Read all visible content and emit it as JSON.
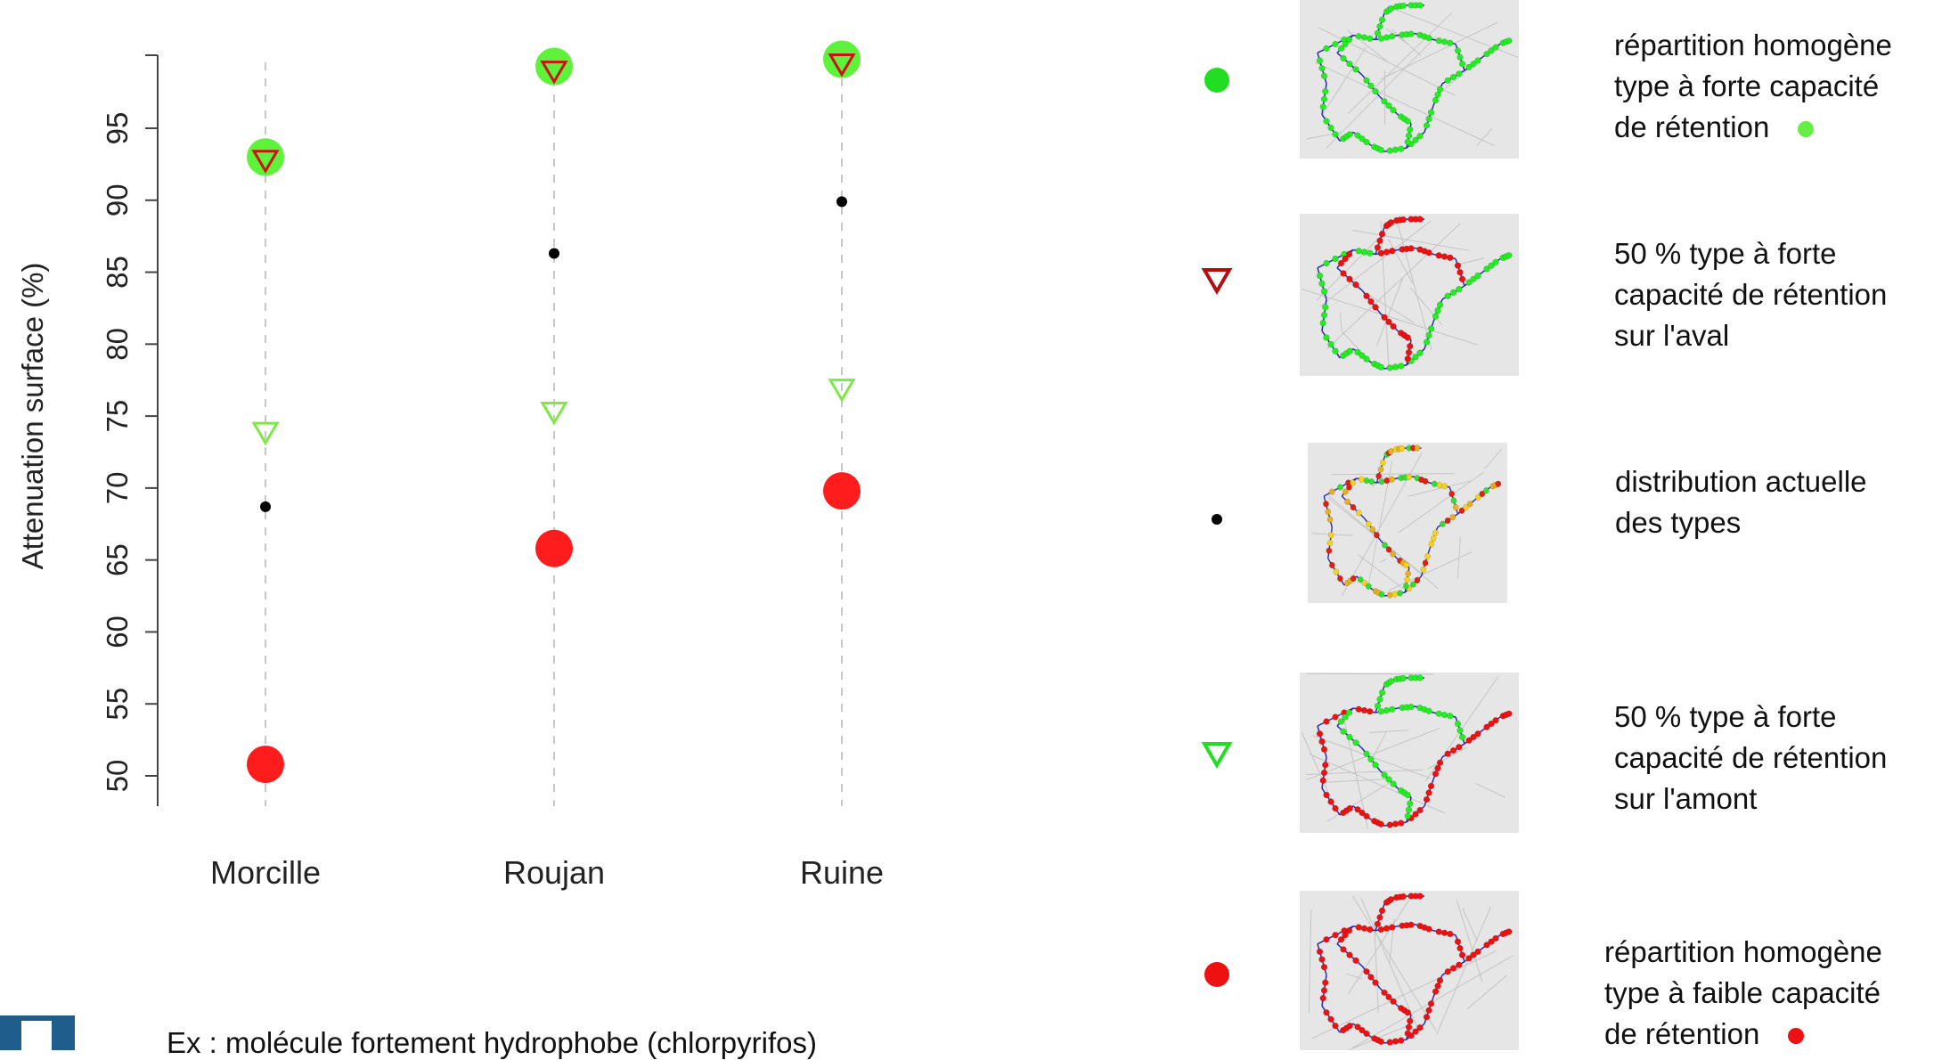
{
  "chart_data": {
    "type": "scatter",
    "ylabel": "Attenuation surface (%)",
    "categories": [
      "Morcille",
      "Roujan",
      "Ruine"
    ],
    "yticks": [
      50,
      55,
      60,
      65,
      70,
      75,
      80,
      85,
      90,
      95
    ],
    "ylim": [
      50,
      100
    ],
    "grid": "vertical dashed lines per category",
    "series": [
      {
        "key": "homogene_forte",
        "marker": "filled-circle-large",
        "color": "#5ff23a",
        "values": [
          93.0,
          99.3,
          99.8
        ]
      },
      {
        "key": "aval_forte",
        "marker": "down-triangle-open",
        "color": "#c81414",
        "values": [
          92.8,
          99.0,
          99.5
        ]
      },
      {
        "key": "actuelle",
        "marker": "filled-circle-small",
        "color": "#000000",
        "values": [
          68.7,
          86.3,
          89.9
        ]
      },
      {
        "key": "amont_forte",
        "marker": "down-triangle-open",
        "color": "#7fe846",
        "values": [
          73.9,
          75.3,
          76.9
        ]
      },
      {
        "key": "homogene_faible",
        "marker": "filled-circle-large",
        "color": "#ff1c1c",
        "values": [
          50.8,
          65.8,
          69.8
        ]
      }
    ]
  },
  "legend": [
    {
      "marker": "filled-circle-large",
      "color": "#22dd22",
      "lines": [
        "répartition homogène",
        "type à forte capacité",
        "de rétention"
      ],
      "trail_dot_color": "#66ee44",
      "map_palette": [
        "#22ee22"
      ]
    },
    {
      "marker": "down-triangle-open",
      "color": "#b01010",
      "lines": [
        "50 % type à forte",
        "capacité de rétention",
        "sur l'aval"
      ],
      "trail_dot_color": "",
      "map_palette": [
        "#22ee22",
        "#ee1111"
      ]
    },
    {
      "marker": "filled-circle-small",
      "color": "#000000",
      "lines": [
        "distribution actuelle",
        "des types"
      ],
      "trail_dot_color": "",
      "map_palette": [
        "#f5d21e",
        "#e02010",
        "#33dd33",
        "#e8b020"
      ]
    },
    {
      "marker": "down-triangle-open",
      "color": "#22dd22",
      "lines": [
        "50 % type à forte",
        "capacité de rétention",
        "sur l'amont"
      ],
      "trail_dot_color": "",
      "map_palette": [
        "#ee1111",
        "#22ee22"
      ]
    },
    {
      "marker": "filled-circle-large",
      "color": "#ee1111",
      "lines": [
        "répartition homogène",
        "type à faible capacité",
        "de rétention"
      ],
      "trail_dot_color": "#ee1111",
      "map_palette": [
        "#ee1111"
      ]
    }
  ],
  "footnote": "Ex : molécule fortement hydrophobe (chlorpyrifos)"
}
